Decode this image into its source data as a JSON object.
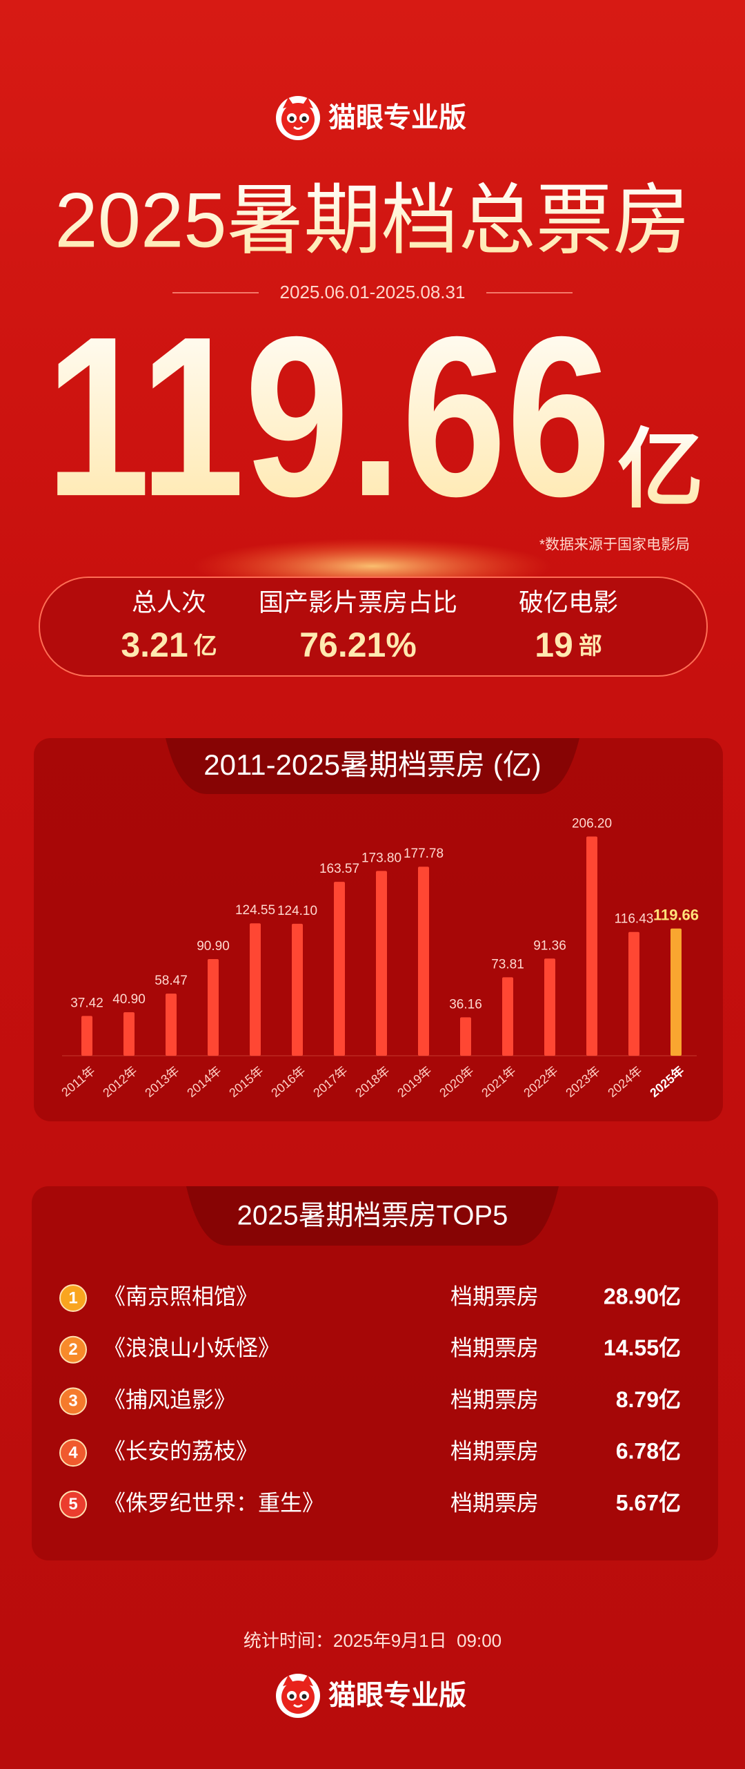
{
  "header": {
    "brand": "猫眼专业版",
    "title": "2025暑期档总票房",
    "date_range": "2025.06.01-2025.08.31",
    "total": "119.66",
    "total_unit": "亿",
    "source": "*数据来源于国家电影局"
  },
  "stats": [
    {
      "label": "总人次",
      "value": "3.21",
      "unit": "亿"
    },
    {
      "label": "国产影片票房占比",
      "value": "76.21%"
    },
    {
      "label": "破亿电影",
      "value": "19",
      "unit": "部"
    }
  ],
  "chart_data": {
    "type": "bar",
    "title": "2011-2025暑期档票房 (亿)",
    "categories": [
      "2011年",
      "2012年",
      "2013年",
      "2014年",
      "2015年",
      "2016年",
      "2017年",
      "2018年",
      "2019年",
      "2020年",
      "2021年",
      "2022年",
      "2023年",
      "2024年",
      "2025年"
    ],
    "values": [
      37.42,
      40.9,
      58.47,
      90.9,
      124.55,
      124.1,
      163.57,
      173.8,
      177.78,
      36.16,
      73.81,
      91.36,
      206.2,
      116.43,
      119.66
    ],
    "value_labels": [
      "37.42",
      "40.90",
      "58.47",
      "90.90",
      "124.55",
      "124.10",
      "163.57",
      "173.80",
      "177.78",
      "36.16",
      "73.81",
      "91.36",
      "206.20",
      "116.43",
      "119.66"
    ],
    "color": "#ff4733",
    "highlight_color": "#f9a630"
  },
  "top5": {
    "title": "2025暑期档票房TOP5",
    "rows": [
      {
        "rank": "1",
        "film": "《南京照相馆》",
        "label": "档期票房",
        "value": "28.90亿"
      },
      {
        "rank": "2",
        "film": "《浪浪山小妖怪》",
        "label": "档期票房",
        "value": "14.55亿"
      },
      {
        "rank": "3",
        "film": "《捕风追影》",
        "label": "档期票房",
        "value": "8.79亿"
      },
      {
        "rank": "4",
        "film": "《长安的荔枝》",
        "label": "档期票房",
        "value": "6.78亿"
      },
      {
        "rank": "5",
        "film": "《侏罗纪世界：重生》",
        "label": "档期票房",
        "value": "5.67亿"
      }
    ]
  },
  "footer": {
    "stat_time": "统计时间：2025年9月1日  09:00",
    "brand": "猫眼专业版"
  }
}
